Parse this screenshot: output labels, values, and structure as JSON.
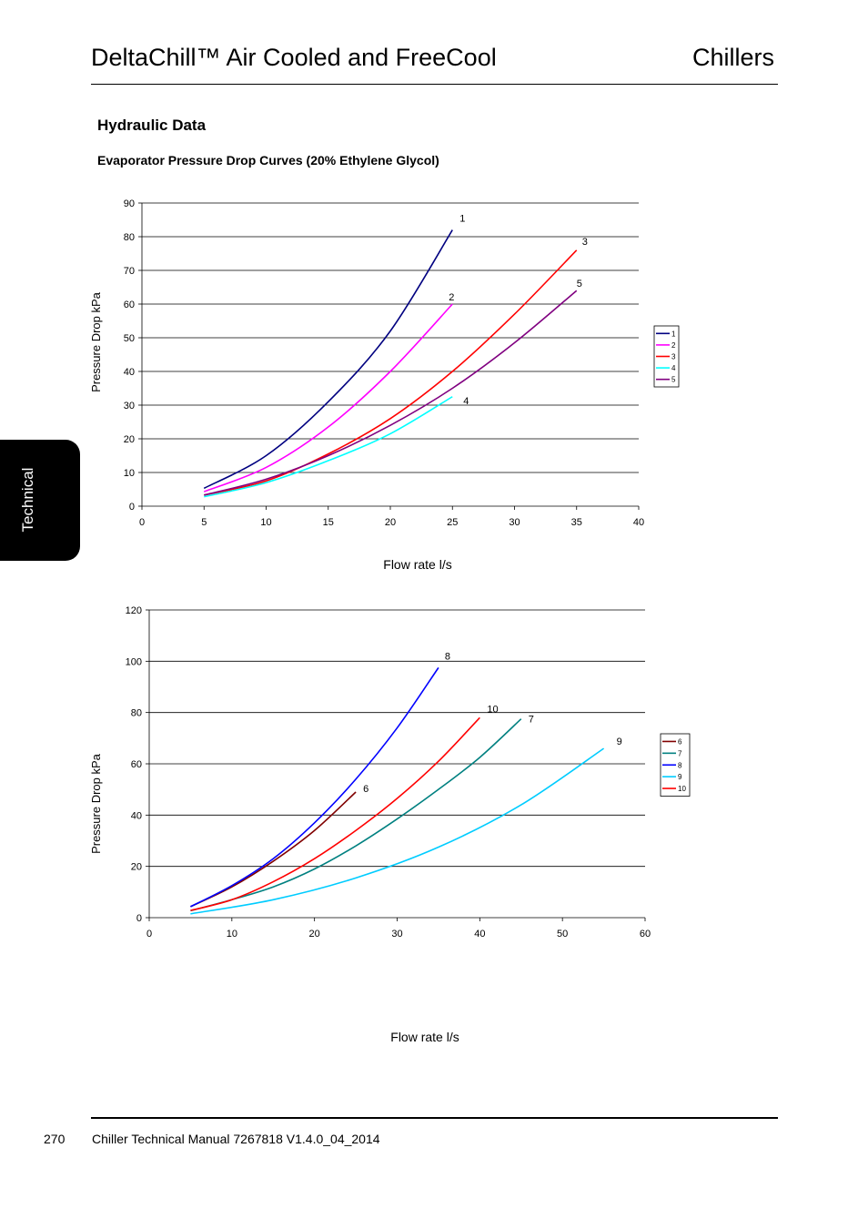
{
  "header": {
    "title_left": "DeltaChill™ Air Cooled and FreeCool",
    "title_right": "Chillers"
  },
  "section_heading": "Hydraulic Data",
  "chart_heading": "Evaporator Pressure Drop Curves (20% Ethylene Glycol)",
  "side_tab": {
    "label": "Technical"
  },
  "footer": {
    "page_number": "270",
    "document": "Chiller Technical Manual 7267818 V1.4.0_04_2014"
  },
  "chart_data": [
    {
      "type": "line",
      "title": "",
      "xlabel": "Flow rate l/s",
      "ylabel": "Pressure Drop kPa",
      "xlim": [
        0,
        40
      ],
      "ylim": [
        0,
        90
      ],
      "x_ticks": [
        0,
        5,
        10,
        15,
        20,
        25,
        30,
        35,
        40
      ],
      "y_ticks": [
        0,
        10,
        20,
        30,
        40,
        50,
        60,
        70,
        80,
        90
      ],
      "grid": "horizontal",
      "legend": "right",
      "series": [
        {
          "name": "1",
          "color": "#000080",
          "x": [
            5,
            10,
            15,
            20,
            25
          ],
          "y": [
            5.3,
            15,
            31,
            52,
            82
          ]
        },
        {
          "name": "2",
          "color": "#ff00ff",
          "x": [
            5,
            10,
            15,
            20,
            25
          ],
          "y": [
            4.3,
            11.5,
            23.5,
            40,
            60
          ]
        },
        {
          "name": "3",
          "color": "#ff0000",
          "x": [
            5,
            10,
            15,
            20,
            25,
            30,
            35
          ],
          "y": [
            3.3,
            7.5,
            15.5,
            26,
            40,
            57,
            76
          ]
        },
        {
          "name": "4",
          "color": "#00ffff",
          "x": [
            5,
            10,
            15,
            20,
            25
          ],
          "y": [
            2.8,
            7,
            13.5,
            21.5,
            32.5
          ]
        },
        {
          "name": "5",
          "color": "#800080",
          "x": [
            5,
            10,
            15,
            20,
            25,
            30,
            35
          ],
          "y": [
            3.3,
            8,
            15,
            24,
            35,
            48.5,
            64
          ]
        }
      ]
    },
    {
      "type": "line",
      "title": "",
      "xlabel": "Flow rate l/s",
      "ylabel": "Pressure Drop kPa",
      "xlim": [
        0,
        60
      ],
      "ylim": [
        0,
        120
      ],
      "x_ticks": [
        0,
        10,
        20,
        30,
        40,
        50,
        60
      ],
      "y_ticks": [
        0,
        20,
        40,
        60,
        80,
        100,
        120
      ],
      "grid": "horizontal",
      "legend": "right",
      "series": [
        {
          "name": "6",
          "color": "#800000",
          "x": [
            5,
            10,
            15,
            20,
            25
          ],
          "y": [
            4.3,
            12,
            22,
            34,
            49
          ]
        },
        {
          "name": "7",
          "color": "#008080",
          "x": [
            5,
            10,
            15,
            20,
            25,
            30,
            35,
            40,
            45
          ],
          "y": [
            2.7,
            7,
            12,
            19,
            28,
            38.5,
            50,
            62.5,
            77.5
          ]
        },
        {
          "name": "8",
          "color": "#0000ff",
          "x": [
            5,
            10,
            15,
            20,
            25,
            30,
            35
          ],
          "y": [
            4.3,
            12.5,
            23,
            37,
            54,
            74,
            97.5
          ]
        },
        {
          "name": "9",
          "color": "#00ccff",
          "x": [
            5,
            15,
            25,
            35,
            45,
            55
          ],
          "y": [
            1.5,
            7,
            15.5,
            27.5,
            44,
            66
          ]
        },
        {
          "name": "10",
          "color": "#ff0000",
          "x": [
            5,
            10,
            15,
            20,
            25,
            30,
            35,
            40
          ],
          "y": [
            2.8,
            7,
            14,
            23,
            34,
            46.5,
            61,
            78
          ]
        }
      ]
    }
  ]
}
